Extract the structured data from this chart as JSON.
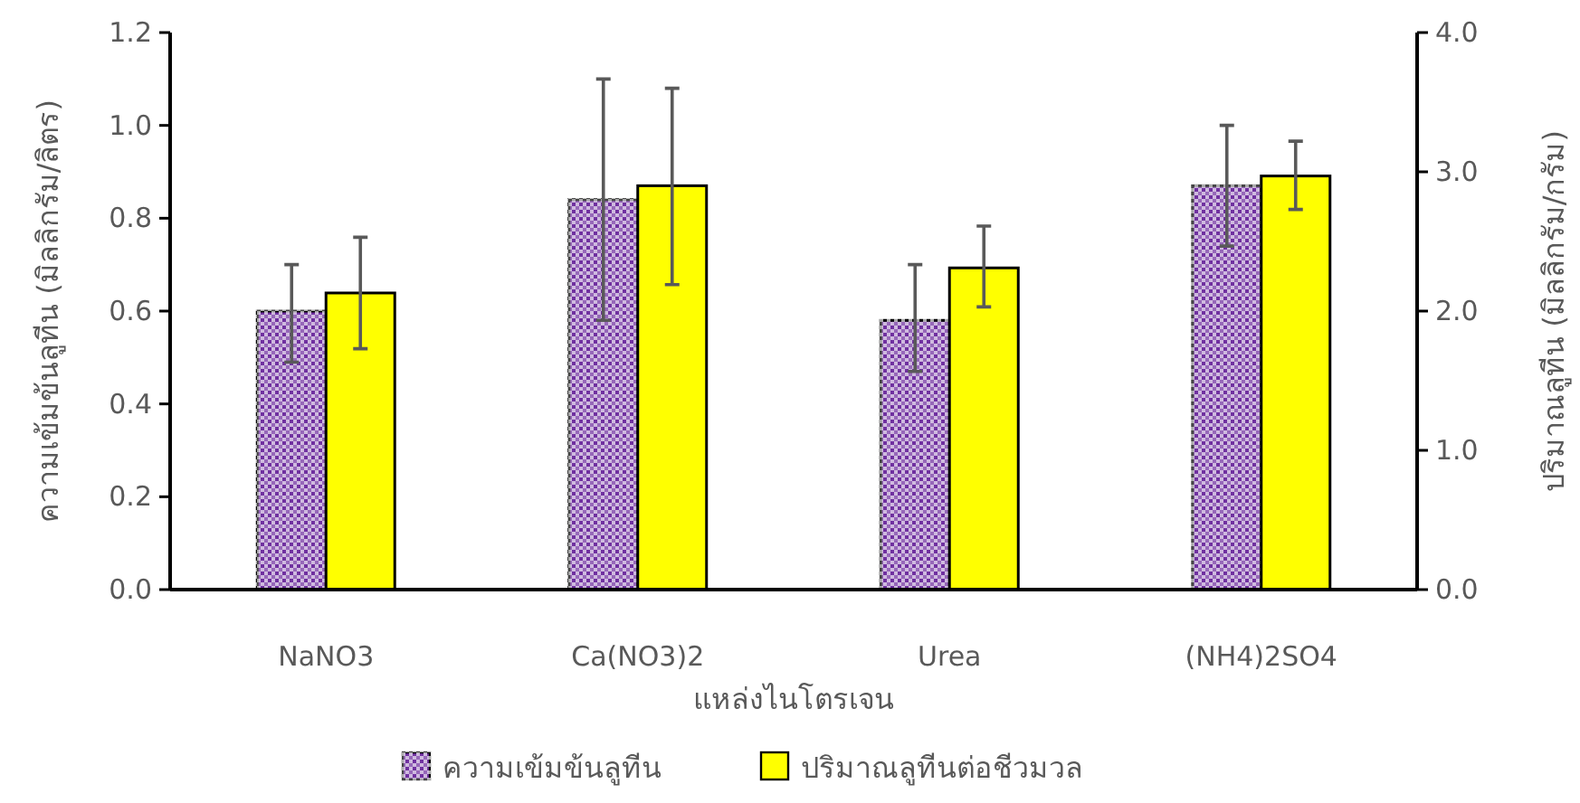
{
  "chart_data": {
    "type": "bar",
    "xlabel": "แหล่งไนโตรเจน",
    "ylabel": "ความเข้มข้นลูทีน (มิลลิกรัม/ลิตร)",
    "y2label": "ปริมาณลูทีน (มิลลิกรัม/กรัม)",
    "categories": [
      "NaNO3",
      "Ca(NO3)2",
      "Urea",
      "(NH4)2SO4"
    ],
    "series": [
      {
        "name": "ความเข้มข้นลูทีน",
        "color": "#7030a0",
        "values": [
          0.6,
          0.84,
          0.58,
          0.87
        ],
        "errors": [
          [
            0.49,
            0.7
          ],
          [
            0.58,
            1.1
          ],
          [
            0.47,
            0.7
          ],
          [
            0.74,
            1.0
          ]
        ]
      },
      {
        "name": "ปริมาณลูทีนต่อชีวมวล",
        "color": "#ffff00",
        "axis": "y2",
        "values": [
          2.13,
          2.9,
          2.31,
          2.97
        ],
        "errors": [
          [
            1.73,
            2.53
          ],
          [
            2.19,
            3.6
          ],
          [
            2.03,
            2.61
          ],
          [
            2.73,
            3.22
          ]
        ]
      }
    ],
    "ylim": [
      0,
      1.2
    ],
    "yticks": [
      {
        "value": 0,
        "label": "0.0"
      },
      {
        "value": 0.2,
        "label": "0.2"
      },
      {
        "value": 0.4,
        "label": "0.4"
      },
      {
        "value": 0.6,
        "label": "0.6"
      },
      {
        "value": 0.8,
        "label": "0.8"
      },
      {
        "value": 1.0,
        "label": "1.0"
      },
      {
        "value": 1.2,
        "label": "1.2"
      }
    ],
    "y2lim": [
      0,
      4
    ],
    "y2ticks": [
      {
        "value": 0,
        "label": "0.0"
      },
      {
        "value": 1,
        "label": "1.0"
      },
      {
        "value": 2,
        "label": "2.0"
      },
      {
        "value": 3,
        "label": "3.0"
      },
      {
        "value": 4,
        "label": "4.0"
      }
    ],
    "legend": "bottom"
  }
}
